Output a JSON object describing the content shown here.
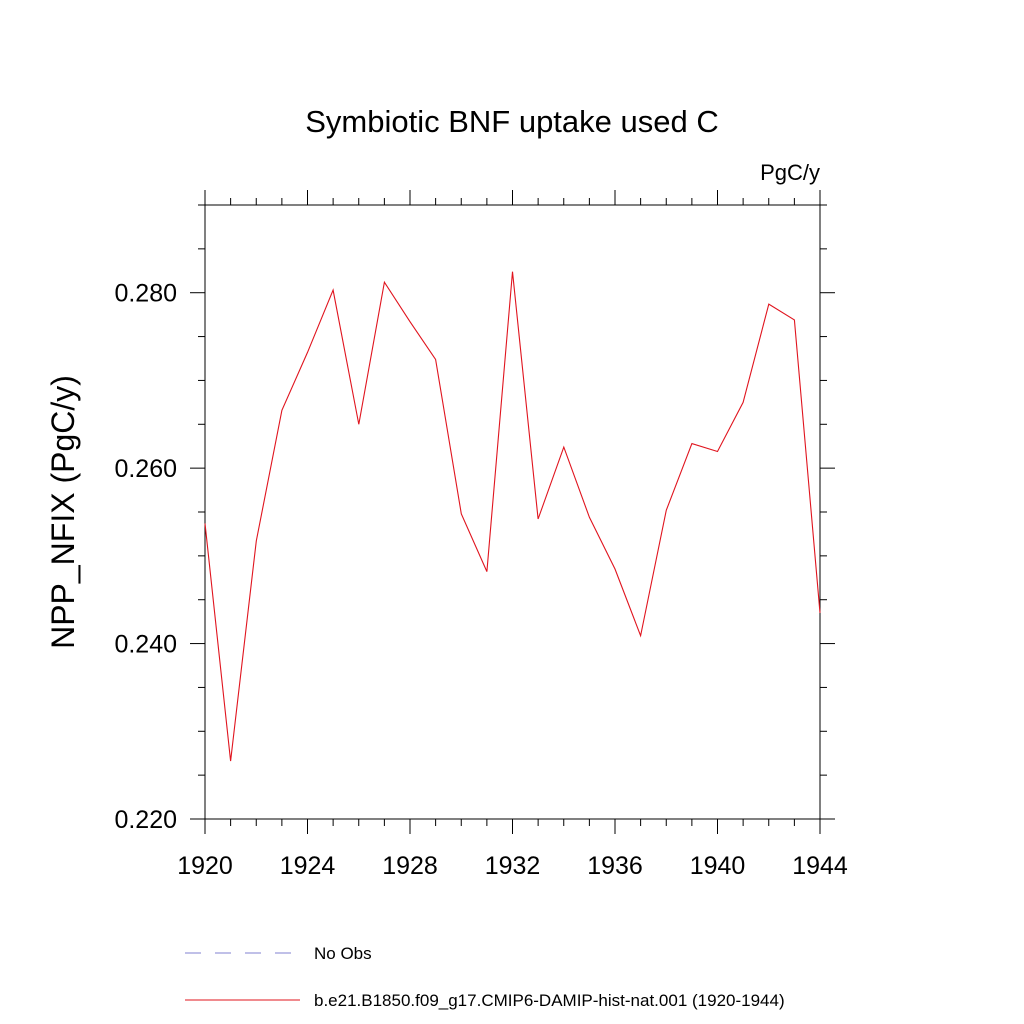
{
  "chart_data": {
    "type": "line",
    "title": "Symbiotic BNF uptake used C",
    "units": "PgC/y",
    "ylabel": "NPP_NFIX  (PgC/y)",
    "xlabel": "",
    "xlim": [
      1920,
      1944
    ],
    "ylim": [
      0.22,
      0.29
    ],
    "x_ticks": [
      1920,
      1924,
      1928,
      1932,
      1936,
      1940,
      1944
    ],
    "x_tick_labels": [
      "1920",
      "1924",
      "1928",
      "1932",
      "1936",
      "1940",
      "1944"
    ],
    "y_ticks": [
      0.22,
      0.24,
      0.26,
      0.28
    ],
    "y_tick_labels": [
      "0.220",
      "0.240",
      "0.260",
      "0.280"
    ],
    "grid": false,
    "legend_position": "bottom",
    "series": [
      {
        "name": "b.e21.B1850.f09_g17.CMIP6-DAMIP-hist-nat.001 (1920-1944)",
        "color": "#e0141e",
        "x": [
          1920,
          1921,
          1922,
          1923,
          1924,
          1925,
          1926,
          1927,
          1928,
          1929,
          1930,
          1931,
          1932,
          1933,
          1934,
          1935,
          1936,
          1937,
          1938,
          1939,
          1940,
          1941,
          1942,
          1943,
          1944
        ],
        "values": [
          0.2537,
          0.2266,
          0.2517,
          0.2666,
          0.2732,
          0.2803,
          0.265,
          0.2812,
          0.2767,
          0.2724,
          0.2548,
          0.2482,
          0.2824,
          0.2542,
          0.2624,
          0.2544,
          0.2485,
          0.2409,
          0.2552,
          0.2628,
          0.2619,
          0.2675,
          0.2787,
          0.2769,
          0.2435
        ]
      }
    ],
    "legend": [
      {
        "label": "No Obs",
        "style": "dashed",
        "color": "#8080d0"
      },
      {
        "label": "b.e21.B1850.f09_g17.CMIP6-DAMIP-hist-nat.001 (1920-1944)",
        "style": "solid",
        "color": "#e0141e"
      }
    ]
  }
}
